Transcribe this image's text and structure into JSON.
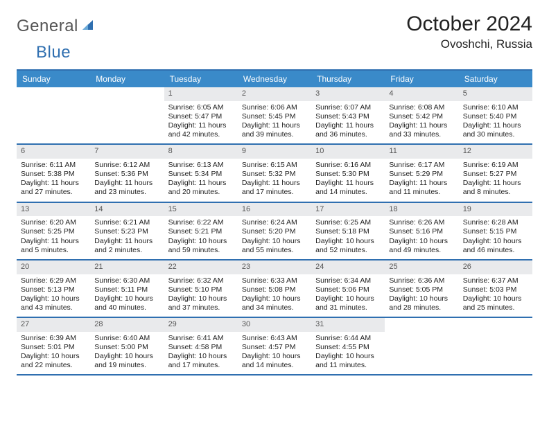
{
  "brand": {
    "word1": "General",
    "word2": "Blue"
  },
  "title": "October 2024",
  "location": "Ovoshchi, Russia",
  "colors": {
    "header_bg": "#3a8ac9",
    "header_text": "#ffffff",
    "rule": "#2f6fb0",
    "daynum_bg": "#e9eaec",
    "daynum_text": "#555555",
    "body_text": "#222222",
    "brand_blue": "#2f6fb0",
    "brand_gray": "#555555"
  },
  "day_headers": [
    "Sunday",
    "Monday",
    "Tuesday",
    "Wednesday",
    "Thursday",
    "Friday",
    "Saturday"
  ],
  "weeks": [
    [
      {
        "n": "",
        "sr": "",
        "ss": "",
        "dl": ""
      },
      {
        "n": "",
        "sr": "",
        "ss": "",
        "dl": ""
      },
      {
        "n": "1",
        "sr": "Sunrise: 6:05 AM",
        "ss": "Sunset: 5:47 PM",
        "dl": "Daylight: 11 hours and 42 minutes."
      },
      {
        "n": "2",
        "sr": "Sunrise: 6:06 AM",
        "ss": "Sunset: 5:45 PM",
        "dl": "Daylight: 11 hours and 39 minutes."
      },
      {
        "n": "3",
        "sr": "Sunrise: 6:07 AM",
        "ss": "Sunset: 5:43 PM",
        "dl": "Daylight: 11 hours and 36 minutes."
      },
      {
        "n": "4",
        "sr": "Sunrise: 6:08 AM",
        "ss": "Sunset: 5:42 PM",
        "dl": "Daylight: 11 hours and 33 minutes."
      },
      {
        "n": "5",
        "sr": "Sunrise: 6:10 AM",
        "ss": "Sunset: 5:40 PM",
        "dl": "Daylight: 11 hours and 30 minutes."
      }
    ],
    [
      {
        "n": "6",
        "sr": "Sunrise: 6:11 AM",
        "ss": "Sunset: 5:38 PM",
        "dl": "Daylight: 11 hours and 27 minutes."
      },
      {
        "n": "7",
        "sr": "Sunrise: 6:12 AM",
        "ss": "Sunset: 5:36 PM",
        "dl": "Daylight: 11 hours and 23 minutes."
      },
      {
        "n": "8",
        "sr": "Sunrise: 6:13 AM",
        "ss": "Sunset: 5:34 PM",
        "dl": "Daylight: 11 hours and 20 minutes."
      },
      {
        "n": "9",
        "sr": "Sunrise: 6:15 AM",
        "ss": "Sunset: 5:32 PM",
        "dl": "Daylight: 11 hours and 17 minutes."
      },
      {
        "n": "10",
        "sr": "Sunrise: 6:16 AM",
        "ss": "Sunset: 5:30 PM",
        "dl": "Daylight: 11 hours and 14 minutes."
      },
      {
        "n": "11",
        "sr": "Sunrise: 6:17 AM",
        "ss": "Sunset: 5:29 PM",
        "dl": "Daylight: 11 hours and 11 minutes."
      },
      {
        "n": "12",
        "sr": "Sunrise: 6:19 AM",
        "ss": "Sunset: 5:27 PM",
        "dl": "Daylight: 11 hours and 8 minutes."
      }
    ],
    [
      {
        "n": "13",
        "sr": "Sunrise: 6:20 AM",
        "ss": "Sunset: 5:25 PM",
        "dl": "Daylight: 11 hours and 5 minutes."
      },
      {
        "n": "14",
        "sr": "Sunrise: 6:21 AM",
        "ss": "Sunset: 5:23 PM",
        "dl": "Daylight: 11 hours and 2 minutes."
      },
      {
        "n": "15",
        "sr": "Sunrise: 6:22 AM",
        "ss": "Sunset: 5:21 PM",
        "dl": "Daylight: 10 hours and 59 minutes."
      },
      {
        "n": "16",
        "sr": "Sunrise: 6:24 AM",
        "ss": "Sunset: 5:20 PM",
        "dl": "Daylight: 10 hours and 55 minutes."
      },
      {
        "n": "17",
        "sr": "Sunrise: 6:25 AM",
        "ss": "Sunset: 5:18 PM",
        "dl": "Daylight: 10 hours and 52 minutes."
      },
      {
        "n": "18",
        "sr": "Sunrise: 6:26 AM",
        "ss": "Sunset: 5:16 PM",
        "dl": "Daylight: 10 hours and 49 minutes."
      },
      {
        "n": "19",
        "sr": "Sunrise: 6:28 AM",
        "ss": "Sunset: 5:15 PM",
        "dl": "Daylight: 10 hours and 46 minutes."
      }
    ],
    [
      {
        "n": "20",
        "sr": "Sunrise: 6:29 AM",
        "ss": "Sunset: 5:13 PM",
        "dl": "Daylight: 10 hours and 43 minutes."
      },
      {
        "n": "21",
        "sr": "Sunrise: 6:30 AM",
        "ss": "Sunset: 5:11 PM",
        "dl": "Daylight: 10 hours and 40 minutes."
      },
      {
        "n": "22",
        "sr": "Sunrise: 6:32 AM",
        "ss": "Sunset: 5:10 PM",
        "dl": "Daylight: 10 hours and 37 minutes."
      },
      {
        "n": "23",
        "sr": "Sunrise: 6:33 AM",
        "ss": "Sunset: 5:08 PM",
        "dl": "Daylight: 10 hours and 34 minutes."
      },
      {
        "n": "24",
        "sr": "Sunrise: 6:34 AM",
        "ss": "Sunset: 5:06 PM",
        "dl": "Daylight: 10 hours and 31 minutes."
      },
      {
        "n": "25",
        "sr": "Sunrise: 6:36 AM",
        "ss": "Sunset: 5:05 PM",
        "dl": "Daylight: 10 hours and 28 minutes."
      },
      {
        "n": "26",
        "sr": "Sunrise: 6:37 AM",
        "ss": "Sunset: 5:03 PM",
        "dl": "Daylight: 10 hours and 25 minutes."
      }
    ],
    [
      {
        "n": "27",
        "sr": "Sunrise: 6:39 AM",
        "ss": "Sunset: 5:01 PM",
        "dl": "Daylight: 10 hours and 22 minutes."
      },
      {
        "n": "28",
        "sr": "Sunrise: 6:40 AM",
        "ss": "Sunset: 5:00 PM",
        "dl": "Daylight: 10 hours and 19 minutes."
      },
      {
        "n": "29",
        "sr": "Sunrise: 6:41 AM",
        "ss": "Sunset: 4:58 PM",
        "dl": "Daylight: 10 hours and 17 minutes."
      },
      {
        "n": "30",
        "sr": "Sunrise: 6:43 AM",
        "ss": "Sunset: 4:57 PM",
        "dl": "Daylight: 10 hours and 14 minutes."
      },
      {
        "n": "31",
        "sr": "Sunrise: 6:44 AM",
        "ss": "Sunset: 4:55 PM",
        "dl": "Daylight: 10 hours and 11 minutes."
      },
      {
        "n": "",
        "sr": "",
        "ss": "",
        "dl": ""
      },
      {
        "n": "",
        "sr": "",
        "ss": "",
        "dl": ""
      }
    ]
  ]
}
